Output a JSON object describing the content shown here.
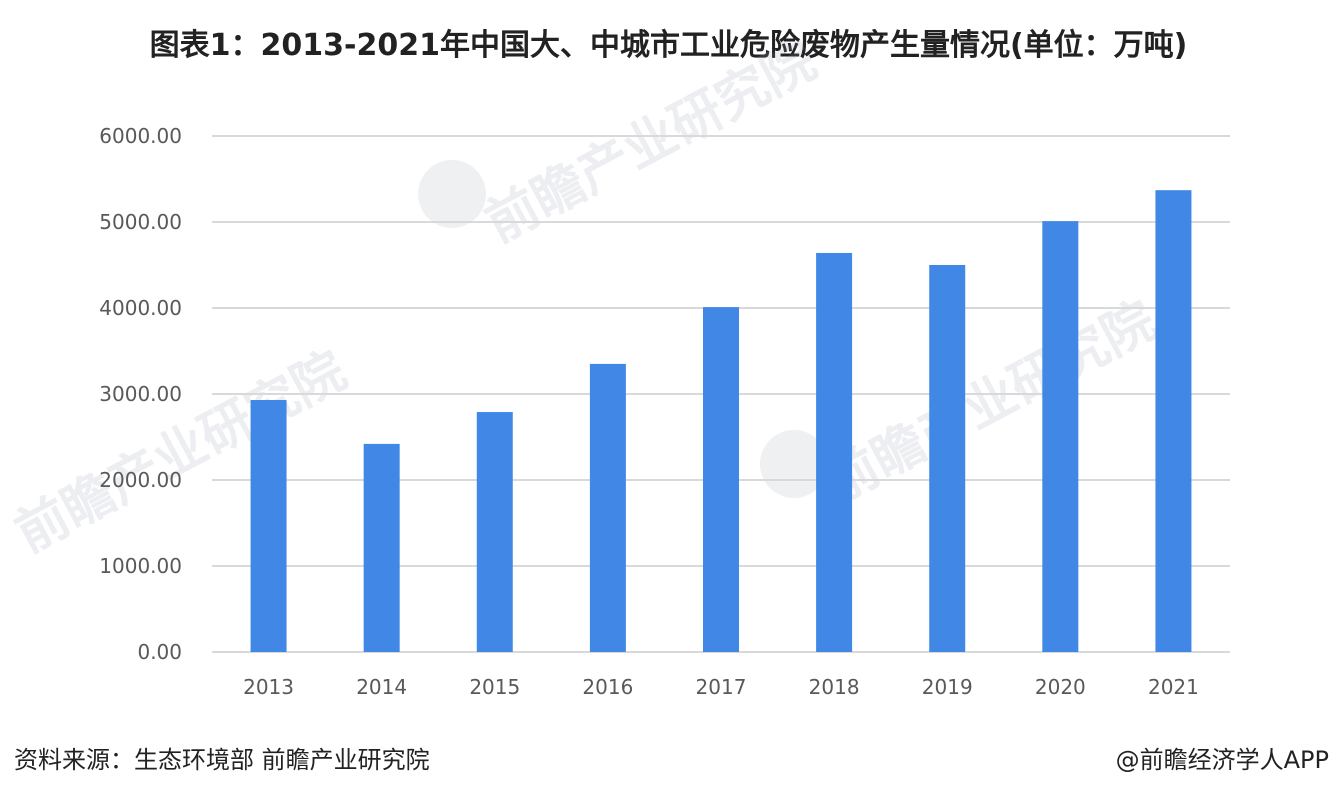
{
  "title": "图表1：2013-2021年中国大、中城市工业危险废物产生量情况(单位：万吨)",
  "source": "资料来源：生态环境部 前瞻产业研究院",
  "credit": "@前瞻经济学人APP",
  "watermark": "前瞻产业研究院",
  "colors": {
    "bar": "#4187E5",
    "grid": "#D9D9D9",
    "axis_text": "#595959"
  },
  "chart_data": {
    "type": "bar",
    "categories": [
      "2013",
      "2014",
      "2015",
      "2016",
      "2017",
      "2018",
      "2019",
      "2020",
      "2021"
    ],
    "values": [
      2930,
      2420,
      2790,
      3350,
      4010,
      4640,
      4500,
      5010,
      5370
    ],
    "y_ticks": [
      "0.00",
      "1000.00",
      "2000.00",
      "3000.00",
      "4000.00",
      "5000.00",
      "6000.00"
    ],
    "ylim": [
      0,
      6000
    ],
    "grid": true,
    "legend": "none"
  }
}
